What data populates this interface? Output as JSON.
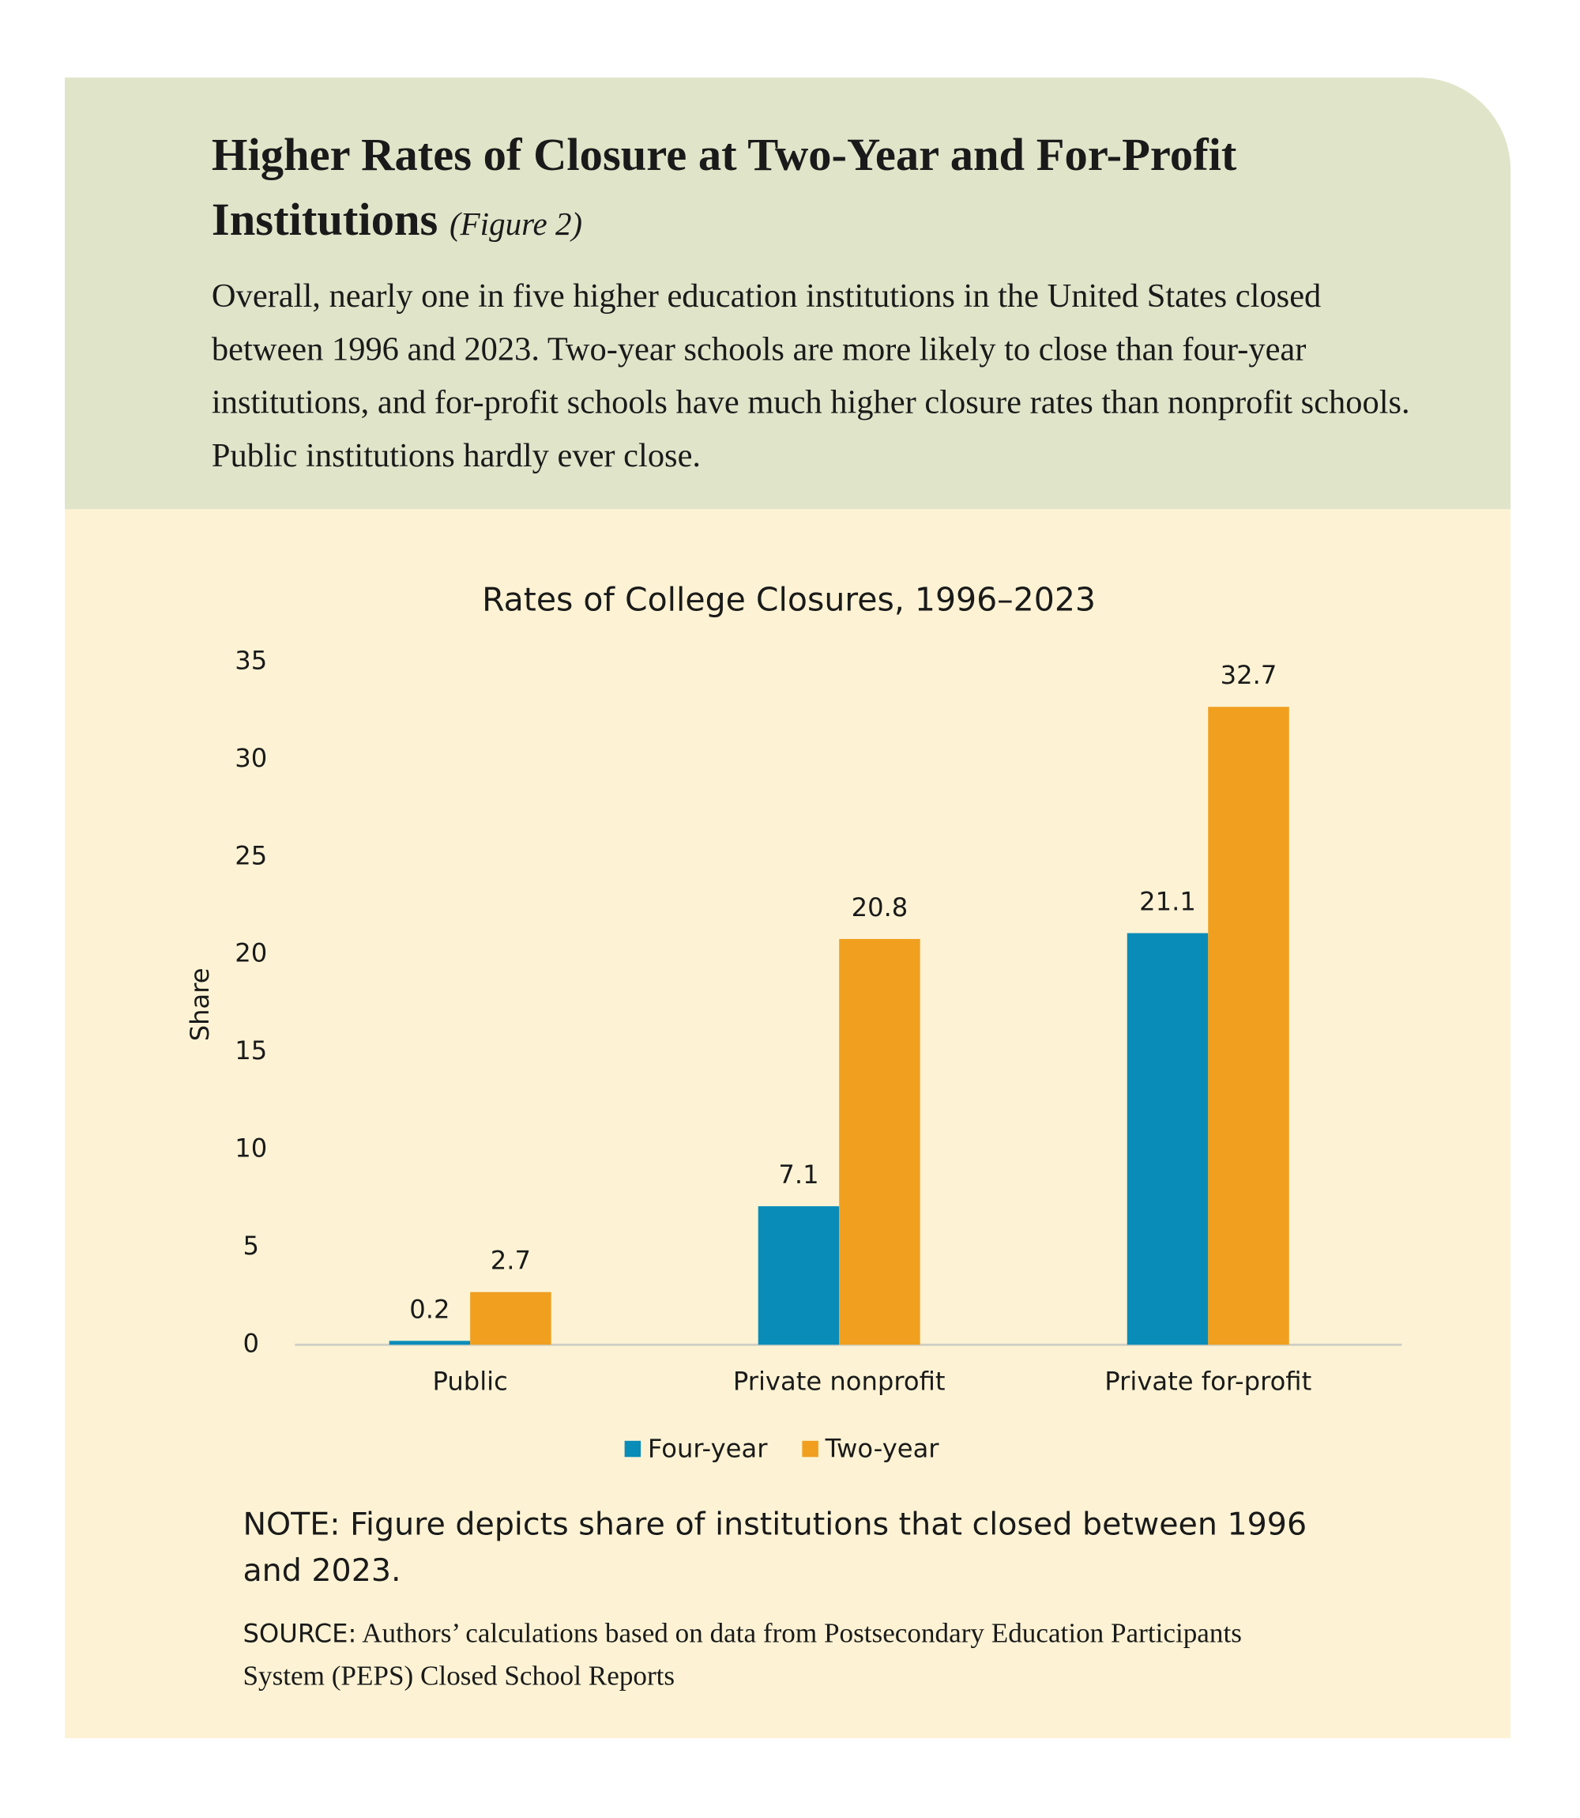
{
  "header": {
    "title": "Higher Rates of Closure at Two-Year and For-Profit Institutions",
    "figure_label": "(Figure 2)",
    "body": "Overall, nearly one in five higher education institutions in the United States closed between 1996 and 2023. Two-year schools are more likely to close than four-year institutions, and for-profit schools have much higher closure rates than nonprofit schools. Public institutions hardly ever close."
  },
  "chart_data": {
    "type": "bar",
    "title": "Rates of College Closures, 1996–2023",
    "y_label": "Share",
    "categories": [
      "Public",
      "Private nonprofit",
      "Private for-profit"
    ],
    "series": [
      {
        "name": "Four-year",
        "color": "#0a8cb9",
        "values": [
          0.2,
          7.1,
          21.1
        ]
      },
      {
        "name": "Two-year",
        "color": "#f09f1f",
        "values": [
          2.7,
          20.8,
          32.7
        ]
      }
    ],
    "ylim": [
      0,
      35
    ],
    "yticks": [
      0,
      5,
      10,
      15,
      20,
      25,
      30,
      35
    ],
    "grid": false
  },
  "footer": {
    "note": "NOTE: Figure depicts share of institutions that closed between 1996 and 2023.",
    "source_label": "SOURCE:",
    "source_text": "Authors’ calculations based on data from Postsecondary Education Participants System (PEPS) Closed School Reports"
  }
}
